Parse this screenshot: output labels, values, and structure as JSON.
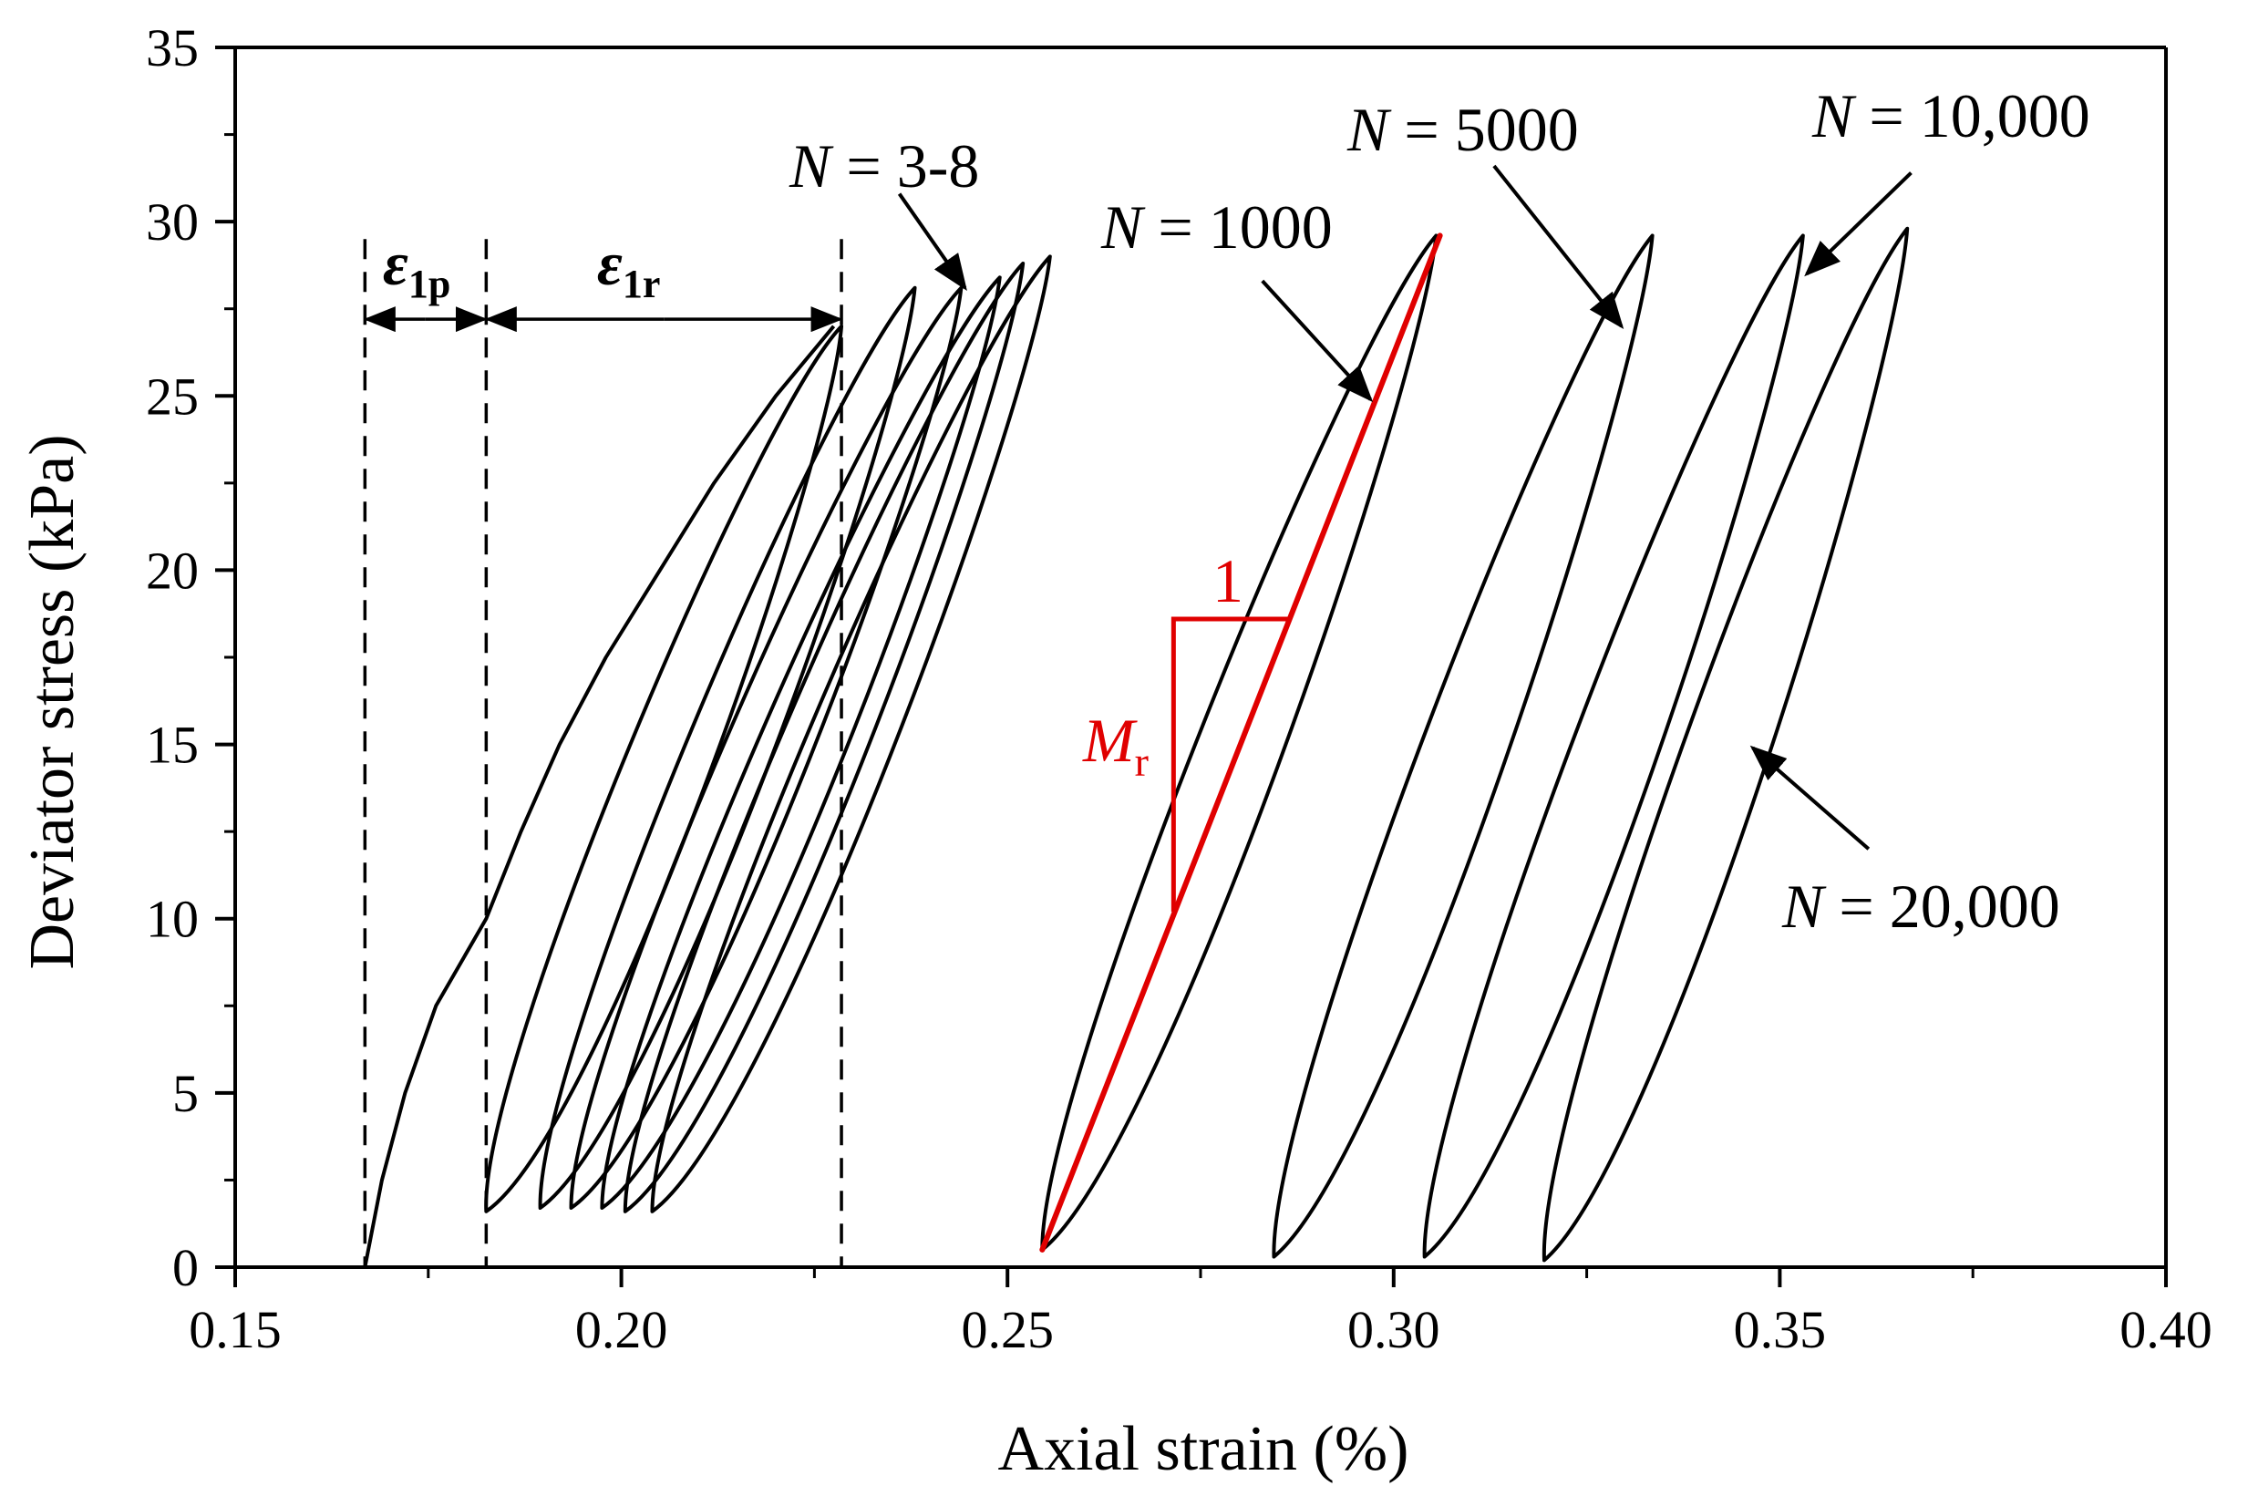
{
  "chart_data": {
    "type": "line",
    "title": "",
    "xlabel": "Axial strain (%)",
    "ylabel": "Deviator stress (kPa)",
    "xlim": [
      0.15,
      0.4
    ],
    "ylim": [
      0,
      35
    ],
    "x_ticks": [
      0.15,
      0.2,
      0.25,
      0.3,
      0.35,
      0.4
    ],
    "x_tick_labels": [
      "0.15",
      "0.20",
      "0.25",
      "0.30",
      "0.35",
      "0.40"
    ],
    "x_minor_step": 0.025,
    "y_ticks": [
      0,
      5,
      10,
      15,
      20,
      25,
      30,
      35
    ],
    "y_tick_labels": [
      "0",
      "5",
      "10",
      "15",
      "20",
      "25",
      "30",
      "35"
    ],
    "y_minor_step": 2.5,
    "grid": false,
    "loading_curve": [
      [
        0.1668,
        0
      ],
      [
        0.169,
        2.5
      ],
      [
        0.172,
        5
      ],
      [
        0.176,
        7.5
      ],
      [
        0.1825,
        10
      ],
      [
        0.187,
        12.5
      ],
      [
        0.192,
        15
      ],
      [
        0.198,
        17.5
      ],
      [
        0.205,
        20
      ],
      [
        0.212,
        22.5
      ],
      [
        0.22,
        25
      ],
      [
        0.2275,
        27
      ]
    ],
    "loops": [
      {
        "cycle": "N = 3-8",
        "bottom": [
          0.1825,
          1.6
        ],
        "top": [
          0.2285,
          27.0
        ]
      },
      {
        "cycle": "N = 3-8",
        "bottom": [
          0.1895,
          1.7
        ],
        "top": [
          0.238,
          28.1
        ]
      },
      {
        "cycle": "N = 3-8",
        "bottom": [
          0.1935,
          1.7
        ],
        "top": [
          0.244,
          28.1
        ]
      },
      {
        "cycle": "N = 3-8",
        "bottom": [
          0.1975,
          1.7
        ],
        "top": [
          0.249,
          28.4
        ]
      },
      {
        "cycle": "N = 3-8",
        "bottom": [
          0.2005,
          1.6
        ],
        "top": [
          0.252,
          28.8
        ]
      },
      {
        "cycle": "N = 3-8",
        "bottom": [
          0.204,
          1.6
        ],
        "top": [
          0.2555,
          29.0
        ]
      },
      {
        "cycle": "N = 1000",
        "bottom": [
          0.2545,
          0.5
        ],
        "top": [
          0.3055,
          29.6
        ]
      },
      {
        "cycle": "N = 5000",
        "bottom": [
          0.2845,
          0.3
        ],
        "top": [
          0.3335,
          29.6
        ]
      },
      {
        "cycle": "N = 10,000",
        "bottom": [
          0.304,
          0.3
        ],
        "top": [
          0.353,
          29.6
        ]
      },
      {
        "cycle": "N = 20,000",
        "bottom": [
          0.3195,
          0.2
        ],
        "top": [
          0.3665,
          29.8
        ]
      }
    ],
    "resilient_modulus_line": {
      "start": [
        0.2545,
        0.5
      ],
      "end": [
        0.306,
        29.6
      ],
      "color": "#e00000"
    },
    "slope_triangle": {
      "corner": [
        0.2715,
        18.6
      ],
      "right": [
        0.2865,
        18.6
      ],
      "bottom": [
        0.2715,
        10.2
      ],
      "run_label": "1",
      "rise_label_main": "M",
      "rise_label_sub": "r",
      "color": "#e00000"
    },
    "strain_markers": {
      "dashed_x": [
        0.1668,
        0.1825,
        0.2285
      ],
      "dashed_top_y": 29.5,
      "arrow_y": 27.2,
      "eps_p": {
        "main": "ε",
        "sub": "1p"
      },
      "eps_r": {
        "main": "ε",
        "sub": "1r"
      }
    },
    "annotations": [
      {
        "id": "n3",
        "main": "N",
        "rest": " = 3-8",
        "arrow_from": [
          0.236,
          30.8
        ],
        "arrow_to": [
          0.2445,
          28.1
        ]
      },
      {
        "id": "n1000",
        "main": "N",
        "rest": " = 1000",
        "arrow_from": [
          0.283,
          28.3
        ],
        "arrow_to": [
          0.297,
          24.9
        ]
      },
      {
        "id": "n5000",
        "main": "N",
        "rest": " = 5000",
        "arrow_from": [
          0.313,
          31.6
        ],
        "arrow_to": [
          0.3295,
          27.0
        ]
      },
      {
        "id": "n10000",
        "main": "N",
        "rest": " = 10,000",
        "arrow_from": [
          0.367,
          31.4
        ],
        "arrow_to": [
          0.3535,
          28.5
        ]
      },
      {
        "id": "n20000",
        "main": "N",
        "rest": " = 20,000",
        "arrow_from": [
          0.3615,
          12.0
        ],
        "arrow_to": [
          0.3465,
          14.9
        ]
      }
    ]
  }
}
